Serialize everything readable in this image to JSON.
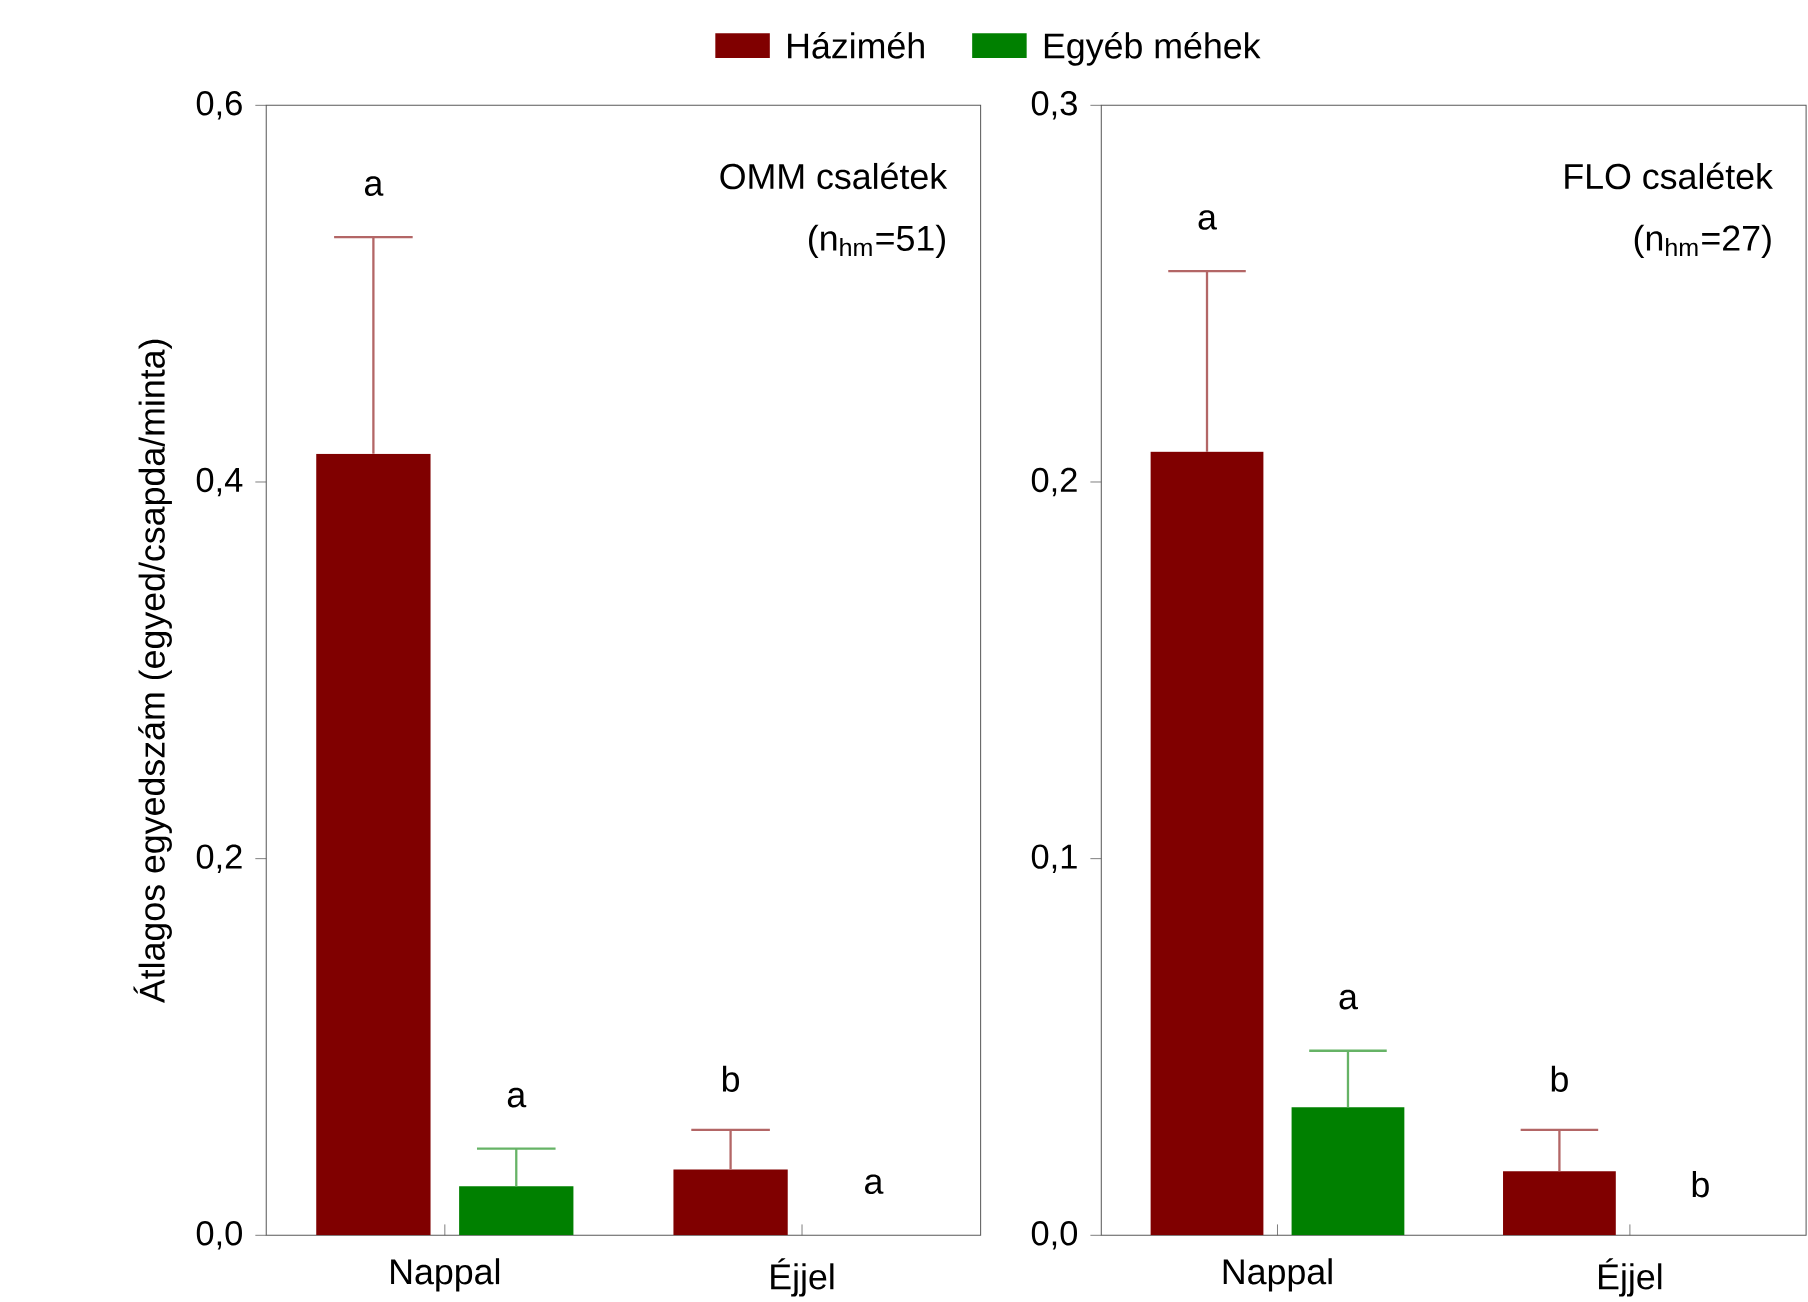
{
  "chart_data": [
    {
      "type": "bar",
      "title": "OMM csalétek",
      "subtitle": "(n$_{hm}$=51)",
      "ylabel": "Átlagos egyedszám (egyed/csapda/minta)",
      "categories": [
        "Nappal",
        "Éjjel"
      ],
      "series": [
        {
          "name": "Háziméh",
          "color": "#800000",
          "values": [
            0.415,
            0.035
          ],
          "errors": [
            [
              0.415,
              0.53
            ],
            [
              0.035,
              0.056
            ]
          ]
        },
        {
          "name": "Egyéb méhek",
          "color": "#008000",
          "values": [
            0.026,
            0
          ],
          "errors": [
            [
              0.026,
              0.046
            ],
            null
          ]
        }
      ],
      "ylim": [
        0,
        0.6
      ],
      "yticks": [
        {
          "value": 0,
          "label": "0,0"
        },
        {
          "value": 0.2,
          "label": "0,2"
        },
        {
          "value": 0.4,
          "label": "0,4"
        },
        {
          "value": 0.6,
          "label": "0,6"
        }
      ],
      "legend": "top",
      "annotations": [
        "a",
        "a",
        "b",
        "a"
      ]
    },
    {
      "type": "bar",
      "title": "FLO csalétek",
      "subtitle": "(n$_{hm}$=27)",
      "categories": [
        "Nappal",
        "Éjjel"
      ],
      "series": [
        {
          "color": "#800000",
          "values": [
            0.208,
            0.017
          ],
          "errors": [
            [
              0.208,
              0.256
            ],
            [
              0.017,
              0.028
            ]
          ]
        },
        {
          "color": "#008000",
          "values": [
            0.034,
            0
          ],
          "errors": [
            [
              0.034,
              0.049
            ],
            null
          ]
        }
      ],
      "ylim": [
        0,
        0.3
      ],
      "yticks": [
        {
          "value": 0,
          "label": "0,0"
        },
        {
          "value": 0.1,
          "label": "0,1"
        },
        {
          "value": 0.2,
          "label": "0,2"
        },
        {
          "value": 0.3,
          "label": "0,3"
        }
      ],
      "annotations": [
        "a",
        "a",
        "b",
        "b"
      ]
    }
  ]
}
